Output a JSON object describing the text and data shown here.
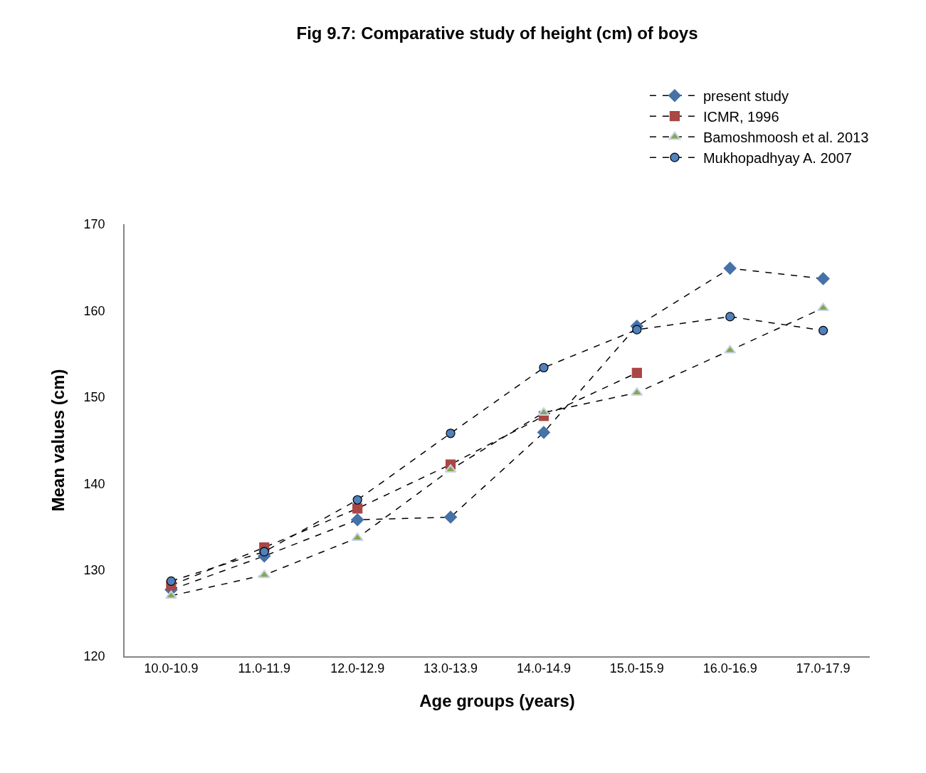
{
  "chart_data": {
    "type": "line",
    "title": "Fig 9.7: Comparative study of height (cm) of boys",
    "xlabel": "Age groups (years)",
    "ylabel": "Mean values (cm)",
    "categories": [
      "10.0-10.9",
      "11.0-11.9",
      "12.0-12.9",
      "13.0-13.9",
      "14.0-14.9",
      "15.0-15.9",
      "16.0-16.9",
      "17.0-17.9"
    ],
    "series": [
      {
        "name": "present study",
        "color": "#4572a7",
        "marker": "diamond",
        "values": [
          127.7,
          131.6,
          135.8,
          136.1,
          145.9,
          158.2,
          164.9,
          163.7
        ]
      },
      {
        "name": "ICMR, 1996",
        "color": "#aa4643",
        "marker": "square",
        "values": [
          128.2,
          132.6,
          137.1,
          142.2,
          147.8,
          152.8,
          null,
          null
        ]
      },
      {
        "name": "Bamoshmoosh et al. 2013",
        "color": "#89a54e",
        "marker": "triangle",
        "values": [
          127.0,
          129.4,
          133.7,
          141.6,
          148.2,
          150.5,
          155.4,
          160.3
        ]
      },
      {
        "name": "Mukhopadhyay A. 2007",
        "color": "#4f81bd",
        "marker": "circle",
        "values": [
          128.7,
          132.1,
          138.1,
          145.8,
          153.4,
          157.8,
          159.3,
          157.7
        ]
      }
    ],
    "ylim": [
      120,
      170
    ],
    "yticks": [
      120,
      130,
      140,
      150,
      160,
      170
    ],
    "grid": false,
    "legend": "top right",
    "line_style": "dashed"
  }
}
